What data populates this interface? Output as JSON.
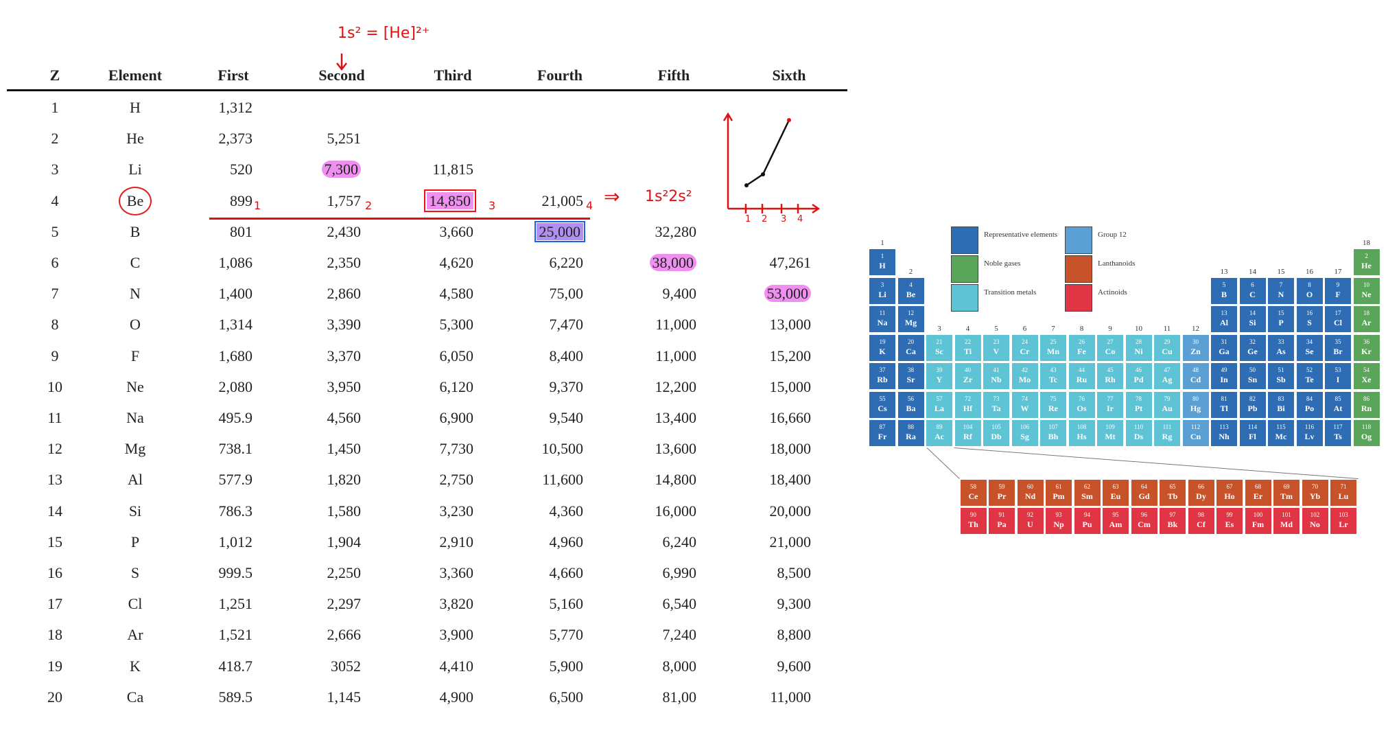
{
  "table": {
    "headers": [
      "Z",
      "Element",
      "First",
      "Second",
      "Third",
      "Fourth",
      "Fifth",
      "Sixth"
    ],
    "rows": [
      [
        "1",
        "H",
        "1,312",
        "",
        "",
        "",
        "",
        ""
      ],
      [
        "2",
        "He",
        "2,373",
        "5,251",
        "",
        "",
        "",
        ""
      ],
      [
        "3",
        "Li",
        "520",
        "7,300",
        "11,815",
        "",
        "",
        ""
      ],
      [
        "4",
        "Be",
        "899",
        "1,757",
        "14,850",
        "21,005",
        "",
        ""
      ],
      [
        "5",
        "B",
        "801",
        "2,430",
        "3,660",
        "25,000",
        "32,280",
        ""
      ],
      [
        "6",
        "C",
        "1,086",
        "2,350",
        "4,620",
        "6,220",
        "38,000",
        "47,261"
      ],
      [
        "7",
        "N",
        "1,400",
        "2,860",
        "4,580",
        "75,00",
        "9,400",
        "53,000"
      ],
      [
        "8",
        "O",
        "1,314",
        "3,390",
        "5,300",
        "7,470",
        "11,000",
        "13,000"
      ],
      [
        "9",
        "F",
        "1,680",
        "3,370",
        "6,050",
        "8,400",
        "11,000",
        "15,200"
      ],
      [
        "10",
        "Ne",
        "2,080",
        "3,950",
        "6,120",
        "9,370",
        "12,200",
        "15,000"
      ],
      [
        "11",
        "Na",
        "495.9",
        "4,560",
        "6,900",
        "9,540",
        "13,400",
        "16,660"
      ],
      [
        "12",
        "Mg",
        "738.1",
        "1,450",
        "7,730",
        "10,500",
        "13,600",
        "18,000"
      ],
      [
        "13",
        "Al",
        "577.9",
        "1,820",
        "2,750",
        "11,600",
        "14,800",
        "18,400"
      ],
      [
        "14",
        "Si",
        "786.3",
        "1,580",
        "3,230",
        "4,360",
        "16,000",
        "20,000"
      ],
      [
        "15",
        "P",
        "1,012",
        "1,904",
        "2,910",
        "4,960",
        "6,240",
        "21,000"
      ],
      [
        "16",
        "S",
        "999.5",
        "2,250",
        "3,360",
        "4,660",
        "6,990",
        "8,500"
      ],
      [
        "17",
        "Cl",
        "1,251",
        "2,297",
        "3,820",
        "5,160",
        "6,540",
        "9,300"
      ],
      [
        "18",
        "Ar",
        "1,521",
        "2,666",
        "3,900",
        "5,770",
        "7,240",
        "8,800"
      ],
      [
        "19",
        "K",
        "418.7",
        "3052",
        "4,410",
        "5,900",
        "8,000",
        "9,600"
      ],
      [
        "20",
        "Ca",
        "589.5",
        "1,145",
        "4,900",
        "6,500",
        "81,00",
        "11,000"
      ]
    ],
    "highlights": [
      {
        "row": 2,
        "col": 3,
        "style": "pink"
      },
      {
        "row": 3,
        "col": 4,
        "style": "box-red"
      },
      {
        "row": 4,
        "col": 5,
        "style": "box-blue"
      },
      {
        "row": 5,
        "col": 6,
        "style": "pink"
      },
      {
        "row": 6,
        "col": 7,
        "style": "pink"
      }
    ],
    "circled": {
      "row": 3,
      "col": 1
    }
  },
  "annotations": {
    "top_note": "1s² = [He]²⁺",
    "be_config": "1s²2s²",
    "implies": "⇒",
    "marks": [
      "1",
      "2",
      "3",
      "4"
    ],
    "graph_ticks": [
      "1",
      "2",
      "3",
      "4"
    ],
    "colors": {
      "ink": "#e01010",
      "pink": "#ef8ff0",
      "blue_box": "#1b5ef0"
    }
  },
  "periodic_table": {
    "colors": {
      "representative": "#2e6db4",
      "noble": "#5aa55a",
      "transition": "#5ec3d4",
      "group12": "#5aa0d4",
      "lanthanoid": "#c8532b",
      "actinoid": "#e03545"
    },
    "legend": [
      {
        "label": "Representative elements",
        "kind": "representative"
      },
      {
        "label": "Noble gases",
        "kind": "noble"
      },
      {
        "label": "Transition metals",
        "kind": "transition"
      },
      {
        "label": "Group 12",
        "kind": "group12"
      },
      {
        "label": "Lanthanoids",
        "kind": "lanthanoid"
      },
      {
        "label": "Actinoids",
        "kind": "actinoid"
      }
    ],
    "groups": [
      "1",
      "2",
      "3",
      "4",
      "5",
      "6",
      "7",
      "8",
      "9",
      "10",
      "11",
      "12",
      "13",
      "14",
      "15",
      "16",
      "17",
      "18"
    ],
    "elements": [
      [
        "1",
        "H",
        1,
        1,
        "representative"
      ],
      [
        "2",
        "He",
        1,
        18,
        "noble"
      ],
      [
        "3",
        "Li",
        2,
        1,
        "representative"
      ],
      [
        "4",
        "Be",
        2,
        2,
        "representative"
      ],
      [
        "5",
        "B",
        2,
        13,
        "representative"
      ],
      [
        "6",
        "C",
        2,
        14,
        "representative"
      ],
      [
        "7",
        "N",
        2,
        15,
        "representative"
      ],
      [
        "8",
        "O",
        2,
        16,
        "representative"
      ],
      [
        "9",
        "F",
        2,
        17,
        "representative"
      ],
      [
        "10",
        "Ne",
        2,
        18,
        "noble"
      ],
      [
        "11",
        "Na",
        3,
        1,
        "representative"
      ],
      [
        "12",
        "Mg",
        3,
        2,
        "representative"
      ],
      [
        "13",
        "Al",
        3,
        13,
        "representative"
      ],
      [
        "14",
        "Si",
        3,
        14,
        "representative"
      ],
      [
        "15",
        "P",
        3,
        15,
        "representative"
      ],
      [
        "16",
        "S",
        3,
        16,
        "representative"
      ],
      [
        "17",
        "Cl",
        3,
        17,
        "representative"
      ],
      [
        "18",
        "Ar",
        3,
        18,
        "noble"
      ],
      [
        "19",
        "K",
        4,
        1,
        "representative"
      ],
      [
        "20",
        "Ca",
        4,
        2,
        "representative"
      ],
      [
        "21",
        "Sc",
        4,
        3,
        "transition"
      ],
      [
        "22",
        "Ti",
        4,
        4,
        "transition"
      ],
      [
        "23",
        "V",
        4,
        5,
        "transition"
      ],
      [
        "24",
        "Cr",
        4,
        6,
        "transition"
      ],
      [
        "25",
        "Mn",
        4,
        7,
        "transition"
      ],
      [
        "26",
        "Fe",
        4,
        8,
        "transition"
      ],
      [
        "27",
        "Co",
        4,
        9,
        "transition"
      ],
      [
        "28",
        "Ni",
        4,
        10,
        "transition"
      ],
      [
        "29",
        "Cu",
        4,
        11,
        "transition"
      ],
      [
        "30",
        "Zn",
        4,
        12,
        "group12"
      ],
      [
        "31",
        "Ga",
        4,
        13,
        "representative"
      ],
      [
        "32",
        "Ge",
        4,
        14,
        "representative"
      ],
      [
        "33",
        "As",
        4,
        15,
        "representative"
      ],
      [
        "34",
        "Se",
        4,
        16,
        "representative"
      ],
      [
        "35",
        "Br",
        4,
        17,
        "representative"
      ],
      [
        "36",
        "Kr",
        4,
        18,
        "noble"
      ],
      [
        "37",
        "Rb",
        5,
        1,
        "representative"
      ],
      [
        "38",
        "Sr",
        5,
        2,
        "representative"
      ],
      [
        "39",
        "Y",
        5,
        3,
        "transition"
      ],
      [
        "40",
        "Zr",
        5,
        4,
        "transition"
      ],
      [
        "41",
        "Nb",
        5,
        5,
        "transition"
      ],
      [
        "42",
        "Mo",
        5,
        6,
        "transition"
      ],
      [
        "43",
        "Tc",
        5,
        7,
        "transition"
      ],
      [
        "44",
        "Ru",
        5,
        8,
        "transition"
      ],
      [
        "45",
        "Rh",
        5,
        9,
        "transition"
      ],
      [
        "46",
        "Pd",
        5,
        10,
        "transition"
      ],
      [
        "47",
        "Ag",
        5,
        11,
        "transition"
      ],
      [
        "48",
        "Cd",
        5,
        12,
        "group12"
      ],
      [
        "49",
        "In",
        5,
        13,
        "representative"
      ],
      [
        "50",
        "Sn",
        5,
        14,
        "representative"
      ],
      [
        "51",
        "Sb",
        5,
        15,
        "representative"
      ],
      [
        "52",
        "Te",
        5,
        16,
        "representative"
      ],
      [
        "53",
        "I",
        5,
        17,
        "representative"
      ],
      [
        "54",
        "Xe",
        5,
        18,
        "noble"
      ],
      [
        "55",
        "Cs",
        6,
        1,
        "representative"
      ],
      [
        "56",
        "Ba",
        6,
        2,
        "representative"
      ],
      [
        "57",
        "La",
        6,
        3,
        "transition"
      ],
      [
        "72",
        "Hf",
        6,
        4,
        "transition"
      ],
      [
        "73",
        "Ta",
        6,
        5,
        "transition"
      ],
      [
        "74",
        "W",
        6,
        6,
        "transition"
      ],
      [
        "75",
        "Re",
        6,
        7,
        "transition"
      ],
      [
        "76",
        "Os",
        6,
        8,
        "transition"
      ],
      [
        "77",
        "Ir",
        6,
        9,
        "transition"
      ],
      [
        "78",
        "Pt",
        6,
        10,
        "transition"
      ],
      [
        "79",
        "Au",
        6,
        11,
        "transition"
      ],
      [
        "80",
        "Hg",
        6,
        12,
        "group12"
      ],
      [
        "81",
        "Tl",
        6,
        13,
        "representative"
      ],
      [
        "82",
        "Pb",
        6,
        14,
        "representative"
      ],
      [
        "83",
        "Bi",
        6,
        15,
        "representative"
      ],
      [
        "84",
        "Po",
        6,
        16,
        "representative"
      ],
      [
        "85",
        "At",
        6,
        17,
        "representative"
      ],
      [
        "86",
        "Rn",
        6,
        18,
        "noble"
      ],
      [
        "87",
        "Fr",
        7,
        1,
        "representative"
      ],
      [
        "88",
        "Ra",
        7,
        2,
        "representative"
      ],
      [
        "89",
        "Ac",
        7,
        3,
        "transition"
      ],
      [
        "104",
        "Rf",
        7,
        4,
        "transition"
      ],
      [
        "105",
        "Db",
        7,
        5,
        "transition"
      ],
      [
        "106",
        "Sg",
        7,
        6,
        "transition"
      ],
      [
        "107",
        "Bh",
        7,
        7,
        "transition"
      ],
      [
        "108",
        "Hs",
        7,
        8,
        "transition"
      ],
      [
        "109",
        "Mt",
        7,
        9,
        "transition"
      ],
      [
        "110",
        "Ds",
        7,
        10,
        "transition"
      ],
      [
        "111",
        "Rg",
        7,
        11,
        "transition"
      ],
      [
        "112",
        "Cn",
        7,
        12,
        "group12"
      ],
      [
        "113",
        "Nh",
        7,
        13,
        "representative"
      ],
      [
        "114",
        "Fl",
        7,
        14,
        "representative"
      ],
      [
        "115",
        "Mc",
        7,
        15,
        "representative"
      ],
      [
        "116",
        "Lv",
        7,
        16,
        "representative"
      ],
      [
        "117",
        "Ts",
        7,
        17,
        "representative"
      ],
      [
        "118",
        "Og",
        7,
        18,
        "noble"
      ]
    ],
    "lanthanoids": [
      [
        "58",
        "Ce"
      ],
      [
        "59",
        "Pr"
      ],
      [
        "60",
        "Nd"
      ],
      [
        "61",
        "Pm"
      ],
      [
        "62",
        "Sm"
      ],
      [
        "63",
        "Eu"
      ],
      [
        "64",
        "Gd"
      ],
      [
        "65",
        "Tb"
      ],
      [
        "66",
        "Dy"
      ],
      [
        "67",
        "Ho"
      ],
      [
        "68",
        "Er"
      ],
      [
        "69",
        "Tm"
      ],
      [
        "70",
        "Yb"
      ],
      [
        "71",
        "Lu"
      ]
    ],
    "actinoids": [
      [
        "90",
        "Th"
      ],
      [
        "91",
        "Pa"
      ],
      [
        "92",
        "U"
      ],
      [
        "93",
        "Np"
      ],
      [
        "94",
        "Pu"
      ],
      [
        "95",
        "Am"
      ],
      [
        "96",
        "Cm"
      ],
      [
        "97",
        "Bk"
      ],
      [
        "98",
        "Cf"
      ],
      [
        "99",
        "Es"
      ],
      [
        "100",
        "Fm"
      ],
      [
        "101",
        "Md"
      ],
      [
        "102",
        "No"
      ],
      [
        "103",
        "Lr"
      ]
    ]
  }
}
